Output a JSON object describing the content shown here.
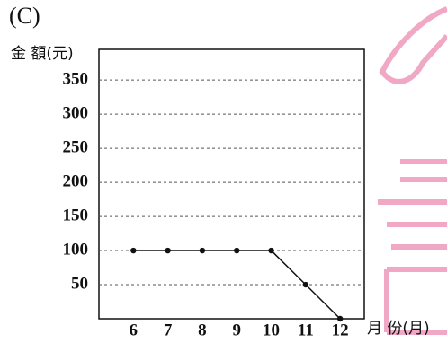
{
  "chart_data": {
    "type": "line",
    "label": "(C)",
    "y_label": "金 額(元)",
    "x_label": "月 份(月)",
    "x": [
      6,
      7,
      8,
      9,
      10,
      11,
      12
    ],
    "values": [
      100,
      100,
      100,
      100,
      100,
      50,
      0
    ],
    "color": "#111111",
    "xlim": [
      5,
      12.7
    ],
    "xticks": [
      6,
      7,
      8,
      9,
      10,
      11,
      12
    ],
    "ylim": [
      0,
      395
    ],
    "yticks": [
      50,
      100,
      150,
      200,
      250,
      300,
      350
    ],
    "grid": true
  }
}
